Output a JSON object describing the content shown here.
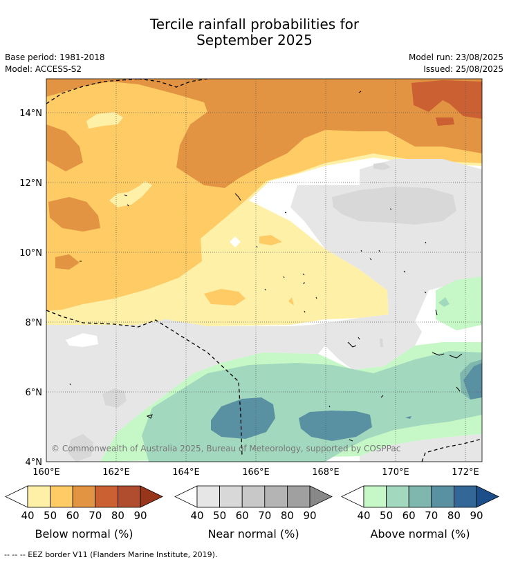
{
  "title_line1": "Tercile rainfall probabilities for",
  "title_line2": "September 2025",
  "base_period": "Base period: 1981-2018",
  "model": "Model: ACCESS-S2",
  "model_run": "Model run: 23/08/2025",
  "issued": "Issued: 25/08/2025",
  "copyright": "© Commonwealth of Australia 2025, Bureau of Meteorology, supported by COSPPac",
  "y_ticks": [
    "14°N",
    "12°N",
    "10°N",
    "8°N",
    "6°N",
    "4°N"
  ],
  "x_ticks": [
    "160°E",
    "162°E",
    "164°E",
    "166°E",
    "168°E",
    "170°E",
    "172°E"
  ],
  "legend_note": "--  --  -- EEZ border V11 (Flanders Marine Institute, 2019).",
  "colorbars": [
    {
      "label": "Below normal (%)",
      "colors": [
        "#fff0a8",
        "#fecb65",
        "#e29442",
        "#cb6032",
        "#b04d2e",
        "#98361c"
      ],
      "ticks": [
        "40",
        "50",
        "60",
        "70",
        "80",
        "90"
      ]
    },
    {
      "label": "Near normal (%)",
      "colors": [
        "#e6e6e6",
        "#d8d8d8",
        "#c8c8c8",
        "#b4b4b4",
        "#a0a0a0",
        "#888888"
      ],
      "ticks": [
        "40",
        "50",
        "60",
        "70",
        "80",
        "90"
      ]
    },
    {
      "label": "Above normal (%)",
      "colors": [
        "#c6f7c7",
        "#a2d8bd",
        "#7fb7af",
        "#5a91a2",
        "#326798",
        "#1c4f8a"
      ],
      "ticks": [
        "40",
        "50",
        "60",
        "70",
        "80",
        "90"
      ]
    }
  ]
}
